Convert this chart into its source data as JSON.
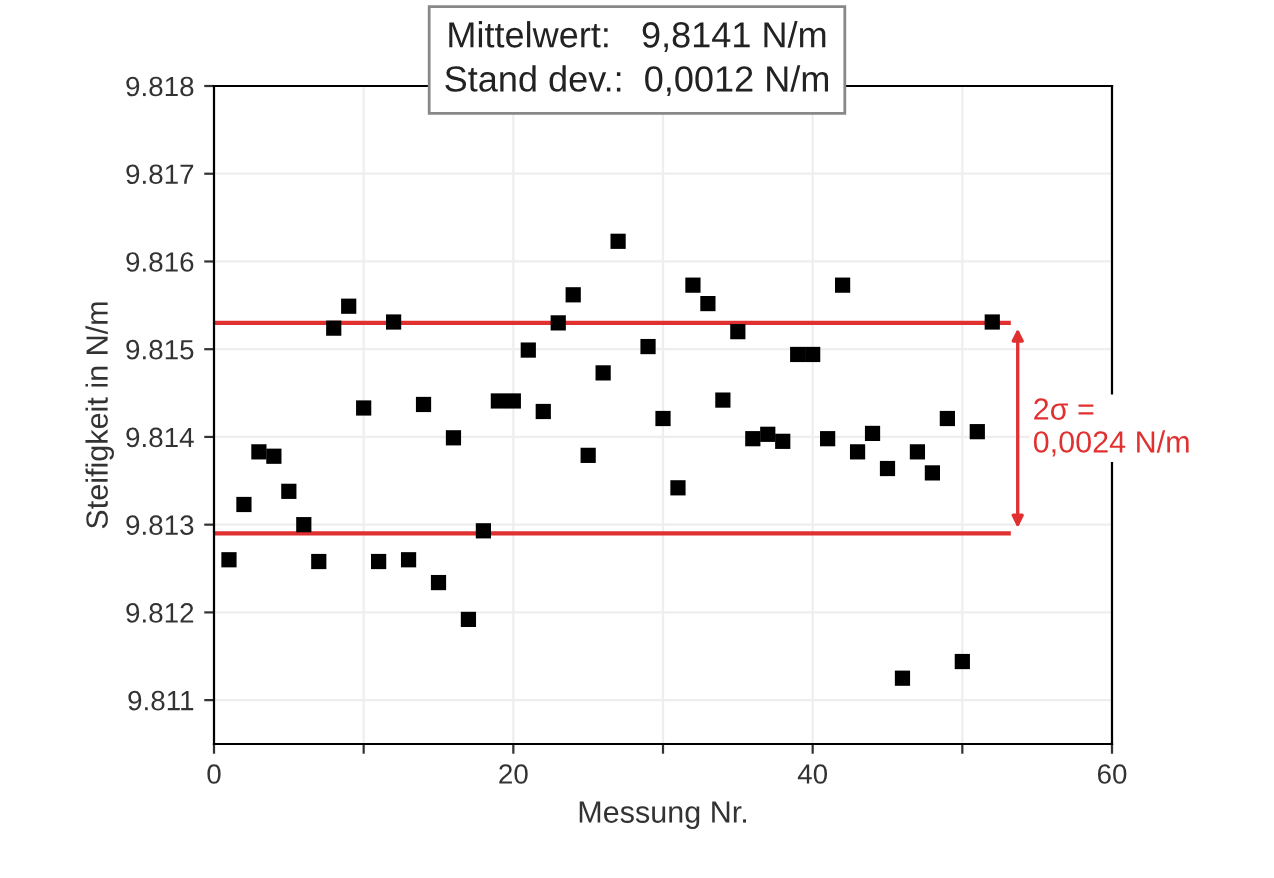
{
  "chart_data": {
    "type": "scatter",
    "xlabel": "Messung Nr.",
    "ylabel": "Steifigkeit in N/m",
    "series": [
      {
        "color": "#000000",
        "x": [
          1,
          2,
          3,
          4,
          5,
          6,
          7,
          8,
          9,
          10,
          11,
          12,
          13,
          14,
          15,
          16,
          17,
          18,
          19,
          20,
          21,
          22,
          23,
          24,
          25,
          26,
          27,
          29,
          30,
          31,
          32,
          33,
          34,
          35,
          36,
          37,
          38,
          39,
          40,
          41,
          42,
          43,
          44,
          45,
          46,
          47,
          48,
          49,
          50,
          51,
          52
        ],
        "values": [
          9.8126,
          9.81323,
          9.81383,
          9.81378,
          9.81338,
          9.813,
          9.81258,
          9.81524,
          9.81549,
          9.81433,
          9.81258,
          9.81531,
          9.8126,
          9.81437,
          9.81234,
          9.81399,
          9.81192,
          9.81293,
          9.81441,
          9.81441,
          9.81499,
          9.81429,
          9.8153,
          9.81562,
          9.81379,
          9.81473,
          9.81623,
          9.81503,
          9.81421,
          9.81342,
          9.81573,
          9.81552,
          9.81442,
          9.8152,
          9.81398,
          9.81403,
          9.81395,
          9.81494,
          9.81494,
          9.81398,
          9.81573,
          9.81383,
          9.81404,
          9.81364,
          9.81125,
          9.81383,
          9.81359,
          9.81421,
          9.81144,
          9.81406,
          9.81531
        ]
      }
    ],
    "marker": "square",
    "xlim": [
      0,
      60
    ],
    "xticks": [
      0,
      {
        "value": 10,
        "label": null
      },
      20,
      {
        "value": 30,
        "label": null
      },
      40,
      {
        "value": 50,
        "label": null
      },
      60
    ],
    "ylim": [
      9.8105,
      9.818
    ],
    "yticks": [
      9.811,
      9.812,
      9.813,
      9.814,
      9.815,
      9.816,
      9.817,
      9.818
    ],
    "grid": true,
    "ref_lines": [
      {
        "axis": "y",
        "value": 9.8153,
        "color": "#e03030"
      },
      {
        "axis": "y",
        "value": 9.8129,
        "color": "#e03030"
      }
    ],
    "annotations": [
      "Mittelwert:   9,8141 N/m\nStand dev.:  0,0012 N/m",
      "2σ =\n0,0024 N/m"
    ]
  }
}
